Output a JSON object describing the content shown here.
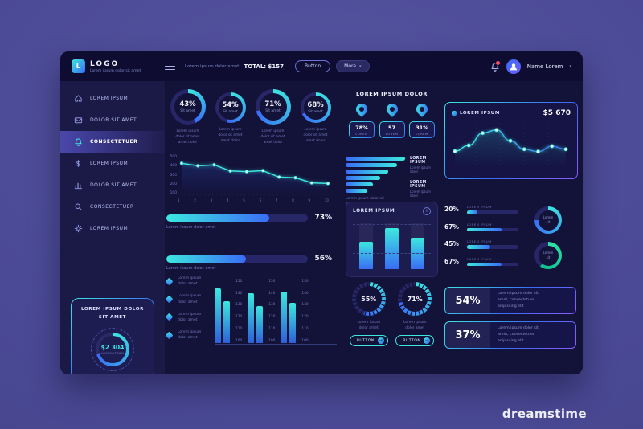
{
  "watermark": {
    "brand": "dreamstime"
  },
  "header": {
    "logo_letter": "L",
    "logo_title": "LOGO",
    "logo_subtitle": "Lorem ipsum dolor sit amet",
    "summary_label": "Lorem ipsum dolor amet",
    "total": "TOTAL: $157",
    "button_label": "Button",
    "more_label": "More",
    "more_caret": "▾",
    "user_name": "Name Lorem",
    "user_caret": "▾"
  },
  "sidebar": {
    "items": [
      {
        "icon": "home-icon",
        "label": "LOREM IPSUM"
      },
      {
        "icon": "mail-icon",
        "label": "DOLOR SIT AMET"
      },
      {
        "icon": "bell-icon",
        "label": "CONSECTETUER"
      },
      {
        "icon": "dollar-icon",
        "label": "LOREM IPSUM"
      },
      {
        "icon": "chart-icon",
        "label": "DOLOR SIT AMET"
      },
      {
        "icon": "search-icon",
        "label": "CONSECTETUER"
      },
      {
        "icon": "gear-icon",
        "label": "LOREM IPSUM"
      }
    ],
    "card": {
      "title_line1": "LOREM IPSUM DOLOR",
      "title_line2": "SIT AMET",
      "gauge_value": "$2 304",
      "gauge_label": "LOREM IPSUM"
    }
  },
  "main": {
    "donuts": [
      {
        "pct": "43%",
        "sub": "Sit amet",
        "caption": [
          "Lorem ipsum",
          "dolor sit amet",
          "amet dolor"
        ]
      },
      {
        "pct": "54%",
        "sub": "Sit amet",
        "caption": [
          "Lorem ipsum",
          "dolor sit amet",
          "amet dolor"
        ]
      },
      {
        "pct": "71%",
        "sub": "Sit amet",
        "caption": [
          "Lorem ipsum",
          "dolor sit amet",
          "amet dolor"
        ]
      },
      {
        "pct": "68%",
        "sub": "Sit amet",
        "caption": [
          "Lorem ipsum",
          "dolor sit amet",
          "amet dolor"
        ]
      }
    ],
    "pins": {
      "title": "LOREM IPSUM DOLOR",
      "items": [
        {
          "value": "78%",
          "label": "LOREM"
        },
        {
          "value": "57",
          "label": "LOREM"
        },
        {
          "value": "31%",
          "label": "LOREM"
        }
      ]
    },
    "funnel": {
      "legend": [
        {
          "label": "LOREM IPSUM",
          "sub": "Lorem ipsum dolor"
        },
        {
          "label": "LOREM IPSUM",
          "sub": "Lorem ipsum dolor"
        }
      ],
      "caption": [
        "Lorem ipsum dolor sit",
        "amet, consectetuer"
      ]
    },
    "revenue_card": {
      "title": "LOREM IPSUM",
      "value": "$5 670"
    },
    "progress": [
      {
        "pct": "73%",
        "label": "Lorem ipsum dolor amet"
      },
      {
        "pct": "56%",
        "label": "Lorem ipsum dolor amet"
      }
    ],
    "bars_card": {
      "title": "LOREM IPSUM",
      "info": "i"
    },
    "kpis": [
      {
        "pct": "20%",
        "label": "LOREM IPSUM"
      },
      {
        "pct": "67%",
        "label": "LOREM IPSUM"
      },
      {
        "pct": "45%",
        "label": "LOREM IPSUM"
      },
      {
        "pct": "67%",
        "label": "LOREM IPSUM"
      }
    ],
    "mini_donuts": [
      {
        "label_line1": "Lorem",
        "label_line2": "sit"
      },
      {
        "label_line1": "Lorem",
        "label_line2": "sit"
      }
    ],
    "bullets": [
      {
        "line1": "Lorem ipsum",
        "line2": "dolor amet"
      },
      {
        "line1": "Lorem ipsum",
        "line2": "dolor amet"
      },
      {
        "line1": "Lorem ipsum",
        "line2": "dolor amet"
      },
      {
        "line1": "Lorem ipsum",
        "line2": "dolor amet"
      }
    ],
    "gauges": [
      {
        "pct": "55%",
        "caption": [
          "Lorem ipsum",
          "dolor amet"
        ],
        "button": "BUTTON"
      },
      {
        "pct": "71%",
        "caption": [
          "Lorem ipsum",
          "dolor amet"
        ],
        "button": "BUTTON"
      }
    ],
    "stats": [
      {
        "pct": "54%",
        "lines": [
          "Lorem ipsum dolor sit",
          "amet, consectetuer",
          "adipiscing elit"
        ]
      },
      {
        "pct": "37%",
        "lines": [
          "Lorem ipsum dolor sit",
          "amet, consectetuer",
          "adipiscing elit"
        ]
      }
    ]
  },
  "chart_data": [
    {
      "name": "top_donuts",
      "type": "pie",
      "items": [
        {
          "label": "Sit amet",
          "value": 43
        },
        {
          "label": "Sit amet",
          "value": 54
        },
        {
          "label": "Sit amet",
          "value": 71
        },
        {
          "label": "Sit amet",
          "value": 68
        }
      ]
    },
    {
      "name": "step_area",
      "type": "area",
      "x": [
        "1",
        "2",
        "3",
        "4",
        "5",
        "6",
        "7",
        "8",
        "9",
        "10"
      ],
      "values": [
        460,
        420,
        435,
        340,
        330,
        345,
        245,
        235,
        155,
        145
      ],
      "yticks": [
        "500",
        "400",
        "300",
        "200",
        "100"
      ],
      "ylim": [
        0,
        500
      ]
    },
    {
      "name": "revenue_line",
      "type": "line",
      "title": "LOREM IPSUM",
      "value_label": "$5 670",
      "values": [
        35,
        50,
        82,
        90,
        62,
        40,
        34,
        48,
        40
      ],
      "ylim": [
        0,
        100
      ]
    },
    {
      "name": "funnel_bars",
      "type": "bar",
      "orientation": "horizontal",
      "values": [
        100,
        86,
        72,
        58,
        46,
        36
      ]
    },
    {
      "name": "card_bars",
      "type": "bar",
      "values": [
        58,
        88,
        68
      ],
      "ylim": [
        0,
        100
      ]
    },
    {
      "name": "kpi_bars",
      "type": "bar",
      "orientation": "horizontal",
      "values": [
        20,
        67,
        45,
        67
      ]
    },
    {
      "name": "grouped_bars",
      "type": "bar",
      "groups": [
        [
          85,
          65
        ],
        [
          78,
          58
        ],
        [
          80,
          62
        ]
      ],
      "yticks": [
        "150",
        "140",
        "130",
        "120",
        "110",
        "100"
      ]
    },
    {
      "name": "progress_bars",
      "type": "bar",
      "orientation": "horizontal",
      "values": [
        73,
        56
      ]
    },
    {
      "name": "bottom_gauges",
      "type": "pie",
      "values": [
        55,
        71
      ]
    },
    {
      "name": "mini_donuts",
      "type": "pie",
      "values": [
        75,
        60
      ]
    },
    {
      "name": "sidebar_gauge",
      "type": "pie",
      "value": 70,
      "center_label": "$2 304"
    },
    {
      "name": "stat_values",
      "type": "table",
      "values": [
        54,
        37
      ]
    }
  ]
}
